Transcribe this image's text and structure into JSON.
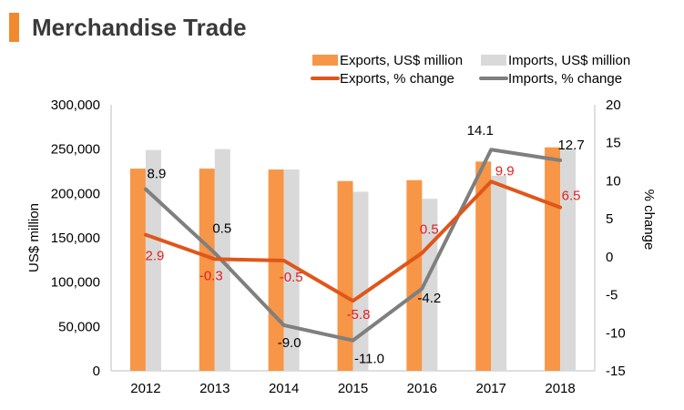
{
  "header": {
    "title": "Merchandise Trade"
  },
  "colors": {
    "accent": "#f08a2e",
    "exports_bar": "#f79646",
    "imports_bar": "#d9d9d9",
    "exports_line": "#e0561a",
    "imports_line": "#7f7f7f",
    "exports_label": "#e02020",
    "imports_label": "#000000"
  },
  "chart_data": {
    "type": "bar",
    "title": "Merchandise Trade",
    "categories": [
      "2012",
      "2013",
      "2014",
      "2015",
      "2016",
      "2017",
      "2018"
    ],
    "series": [
      {
        "name": "Exports, US$ million",
        "type": "bar",
        "axis": "left",
        "values": [
          228000,
          228000,
          227000,
          214000,
          215000,
          236000,
          252000
        ]
      },
      {
        "name": "Imports, US$ million",
        "type": "bar",
        "axis": "left",
        "values": [
          249000,
          250000,
          227000,
          202000,
          194000,
          220000,
          250000
        ]
      },
      {
        "name": "Exports, % change",
        "type": "line",
        "axis": "right",
        "values": [
          2.9,
          -0.3,
          -0.5,
          -5.8,
          0.5,
          9.9,
          6.5
        ]
      },
      {
        "name": "Imports, % change",
        "type": "line",
        "axis": "right",
        "values": [
          8.9,
          0.5,
          -9.0,
          -11.0,
          -4.2,
          14.1,
          12.7
        ]
      }
    ],
    "ylabel": "US$ million",
    "y2label": "% change",
    "ylim": [
      0,
      300000
    ],
    "y2lim": [
      -15,
      20
    ],
    "yticks": [
      "0",
      "50,000",
      "100,000",
      "150,000",
      "200,000",
      "250,000",
      "300,000"
    ],
    "y2ticks": [
      "-15",
      "-10",
      "-5",
      "0",
      "5",
      "10",
      "15",
      "20"
    ],
    "export_labels": [
      "2.9",
      "-0.3",
      "-0.5",
      "-5.8",
      "0.5",
      "9.9",
      "6.5"
    ],
    "import_labels": [
      "8.9",
      "0.5",
      "-9.0",
      "-11.0",
      "-4.2",
      "14.1",
      "12.7"
    ],
    "legend_position": "top-right",
    "grid": false
  }
}
